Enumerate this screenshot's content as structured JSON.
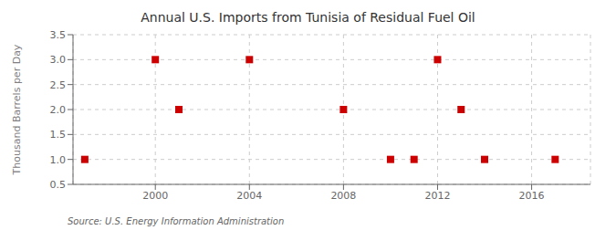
{
  "chart_data": {
    "type": "scatter",
    "title": "Annual U.S. Imports from Tunisia of Residual Fuel Oil",
    "y_label": "Thousand Barrels per Day",
    "annotations": [
      "Source: U.S. Energy Information Administration"
    ],
    "x": [
      1997,
      2000,
      2001,
      2004,
      2008,
      2010,
      2011,
      2012,
      2013,
      2014,
      2017
    ],
    "values": [
      1,
      3,
      2,
      3,
      2,
      1,
      1,
      3,
      2,
      1,
      1
    ],
    "color": "#cc0000",
    "marker": "square",
    "xlim": [
      1996.5,
      2018.5
    ],
    "ylim": [
      0.5,
      3.5
    ],
    "xticks": [
      2000,
      2004,
      2008,
      2012,
      2016
    ],
    "yticks": [
      0.5,
      {
        "value": 1.0,
        "label": "1.0"
      },
      1.5,
      {
        "value": 2.0,
        "label": "2.0"
      },
      2.5,
      {
        "value": 3.0,
        "label": "3.0"
      },
      3.5
    ],
    "grid": true
  }
}
